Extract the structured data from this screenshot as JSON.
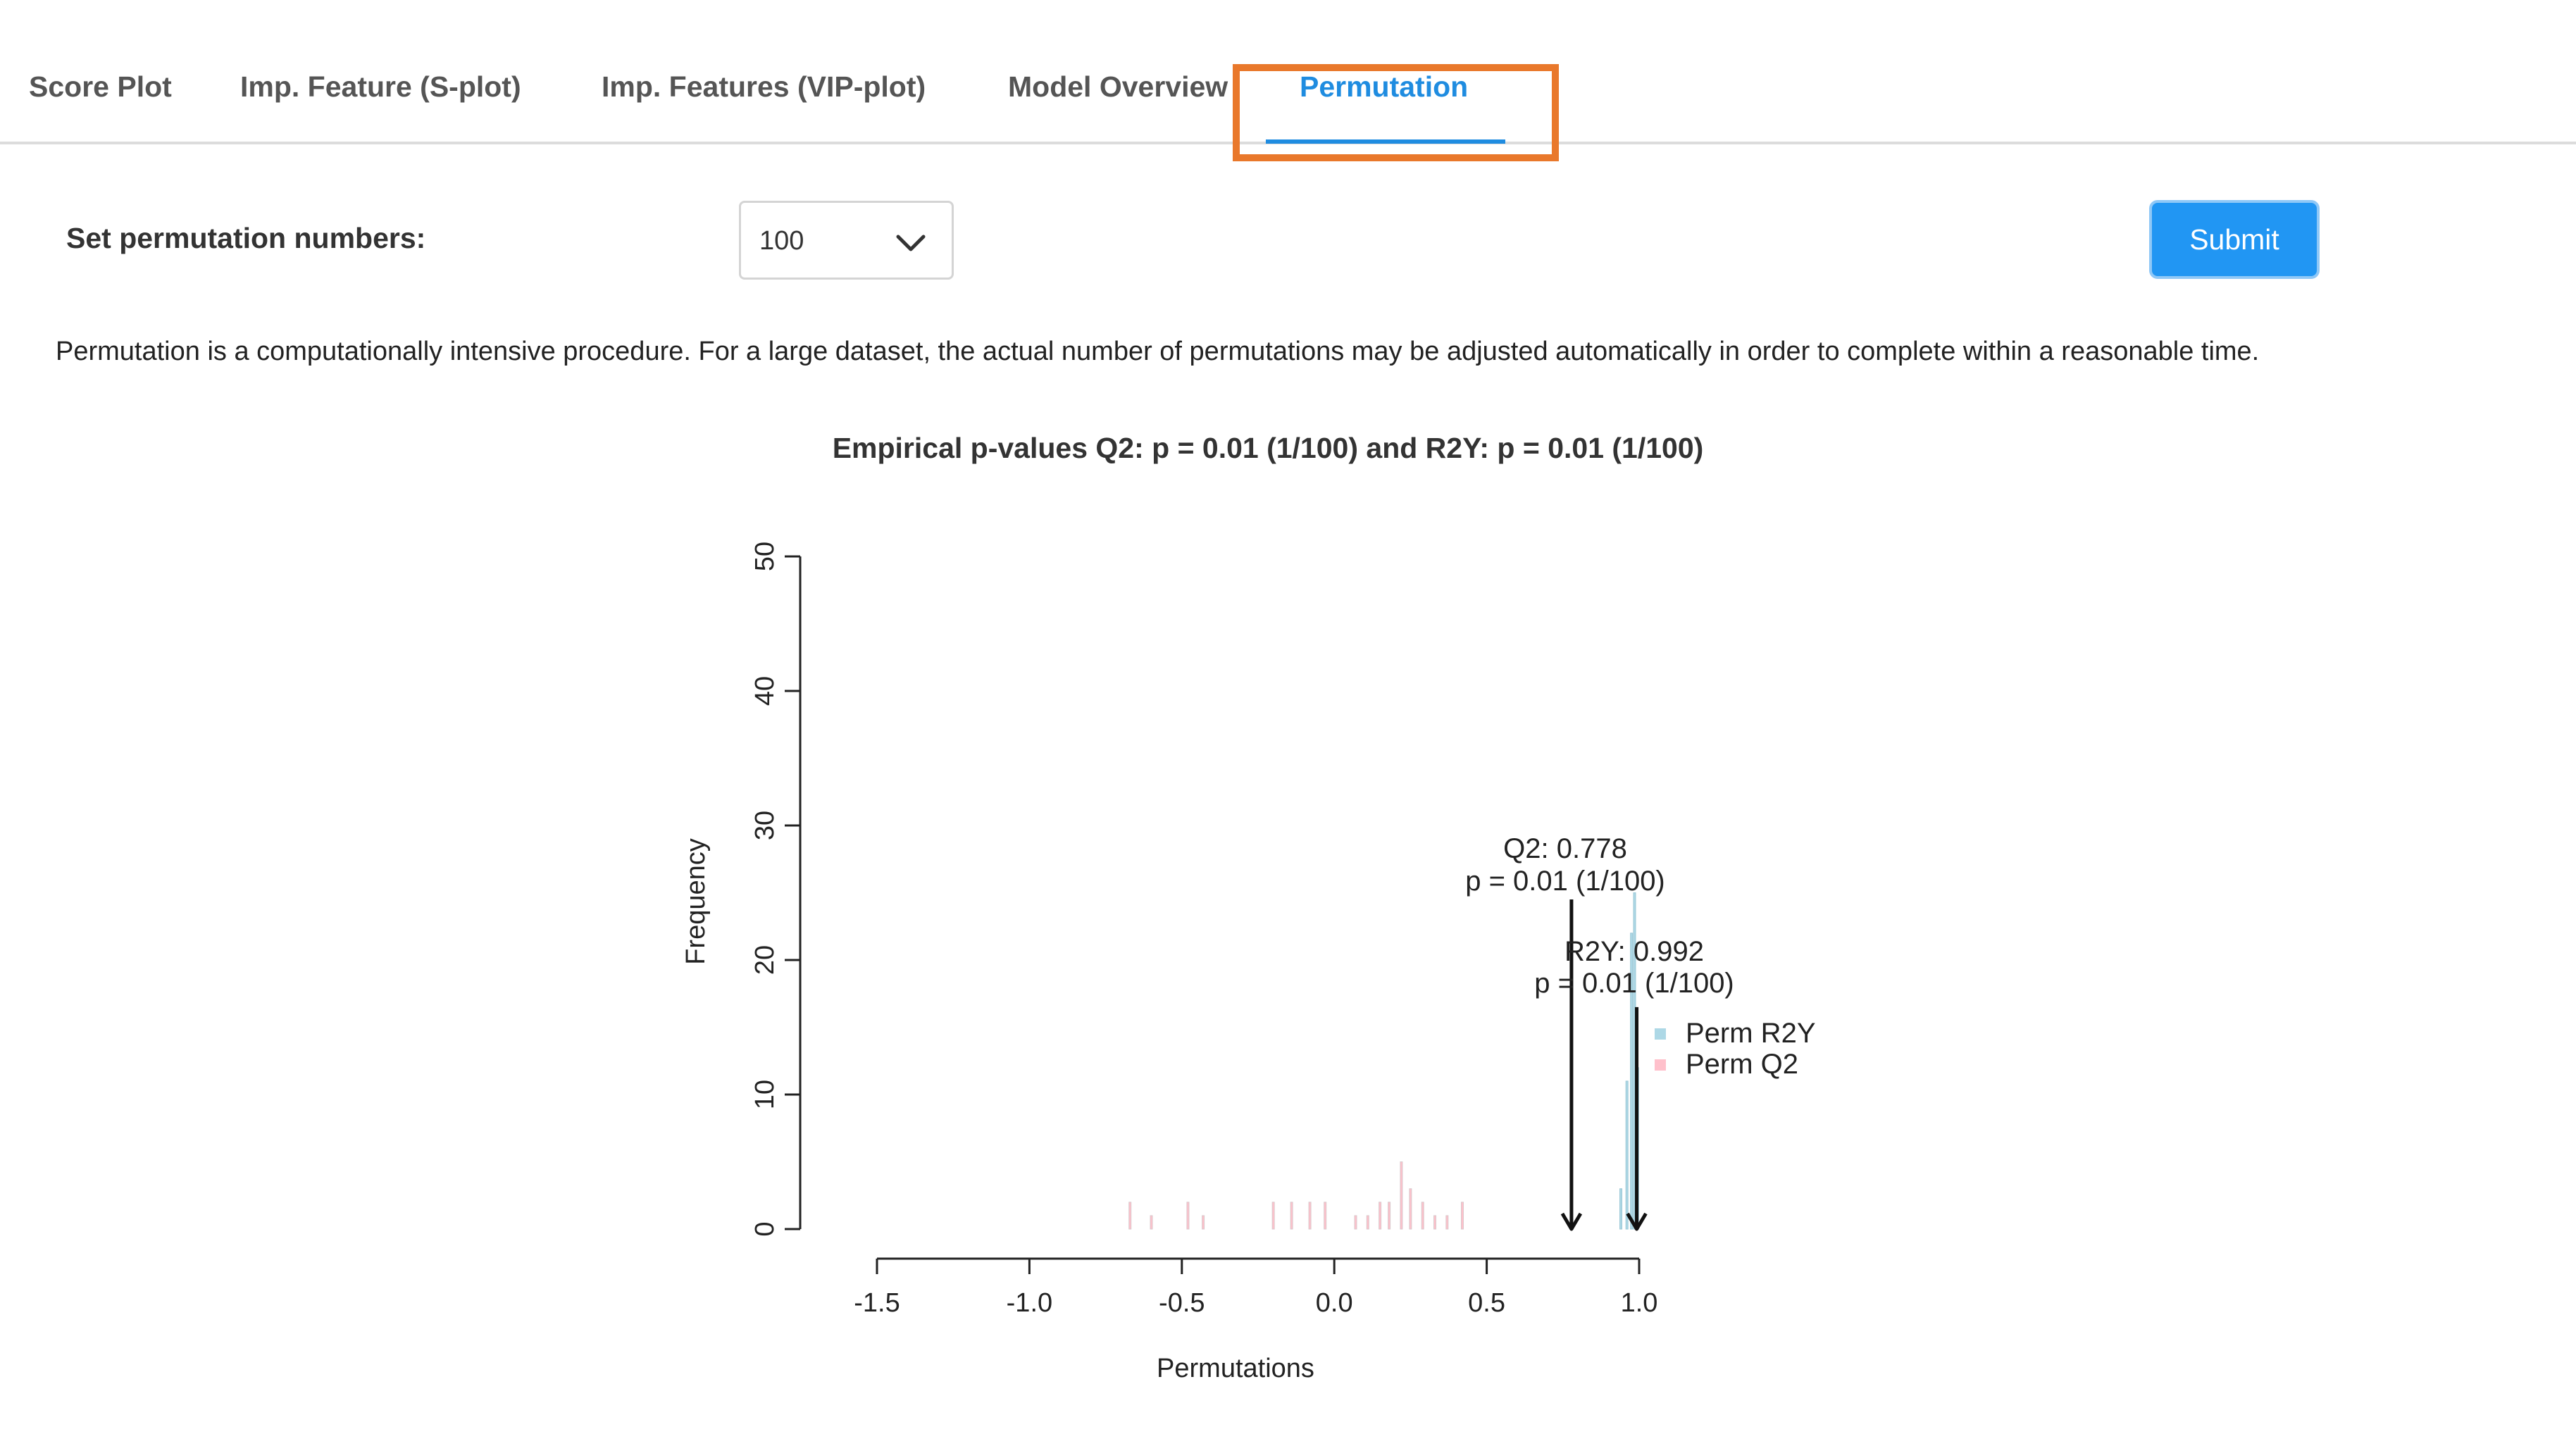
{
  "tabs": [
    {
      "label": "Score Plot",
      "active": false
    },
    {
      "label": "Imp. Feature (S-plot)",
      "active": false
    },
    {
      "label": "Imp. Features (VIP-plot)",
      "active": false
    },
    {
      "label": "Model Overview",
      "active": false
    },
    {
      "label": "Permutation",
      "active": true
    }
  ],
  "controls": {
    "permutation_label": "Set permutation numbers:",
    "permutation_select_value": "100",
    "submit_label": "Submit"
  },
  "note": "Permutation is a computationally intensive procedure. For a large dataset, the actual number of permutations may be adjusted automatically in order to complete within a reasonable time.",
  "colors": {
    "accent": "#1f8ce0",
    "submit_bg": "#2196f3",
    "highlight": "#e9782b",
    "perm_r2y": "#add8e6",
    "perm_q2": "#ffc0cb"
  },
  "chart_data": {
    "type": "histogram",
    "title": "Empirical p-values Q2: p = 0.01 (1/100) and R2Y: p = 0.01 (1/100)",
    "xlabel": "Permutations",
    "ylabel": "Frequency",
    "xlim": [
      -1.5,
      1.0
    ],
    "ylim": [
      0,
      50
    ],
    "x_ticks": [
      "-1.5",
      "-1.0",
      "-0.5",
      "0.0",
      "0.5",
      "1.0"
    ],
    "y_ticks": [
      "0",
      "10",
      "20",
      "30",
      "40",
      "50"
    ],
    "legend": {
      "placement": "right",
      "entries": [
        "Perm R2Y",
        "Perm Q2"
      ]
    },
    "series": [
      {
        "name": "Perm R2Y",
        "color": "#add8e6",
        "bars": [
          {
            "x": 0.94,
            "y": 3
          },
          {
            "x": 0.96,
            "y": 11
          },
          {
            "x": 0.975,
            "y": 22
          },
          {
            "x": 0.985,
            "y": 25
          },
          {
            "x": 0.995,
            "y": 12
          }
        ]
      },
      {
        "name": "Perm Q2",
        "color": "#ffc0cb",
        "bars": [
          {
            "x": -0.67,
            "y": 2
          },
          {
            "x": -0.6,
            "y": 1
          },
          {
            "x": -0.48,
            "y": 2
          },
          {
            "x": -0.43,
            "y": 1
          },
          {
            "x": -0.2,
            "y": 2
          },
          {
            "x": -0.14,
            "y": 2
          },
          {
            "x": -0.08,
            "y": 2
          },
          {
            "x": -0.03,
            "y": 2
          },
          {
            "x": 0.07,
            "y": 1
          },
          {
            "x": 0.11,
            "y": 1
          },
          {
            "x": 0.15,
            "y": 2
          },
          {
            "x": 0.18,
            "y": 2
          },
          {
            "x": 0.22,
            "y": 5
          },
          {
            "x": 0.25,
            "y": 3
          },
          {
            "x": 0.29,
            "y": 2
          },
          {
            "x": 0.33,
            "y": 1
          },
          {
            "x": 0.37,
            "y": 1
          },
          {
            "x": 0.42,
            "y": 2
          }
        ]
      }
    ],
    "annotations": [
      {
        "name": "Q2",
        "line1": "Q2: 0.778",
        "line2": "p = 0.01 (1/100)",
        "x": 0.778,
        "arrow_from_y": 24.5,
        "arrow_to_y": 0
      },
      {
        "name": "R2Y",
        "line1": "R2Y: 0.992",
        "line2": "p = 0.01 (1/100)",
        "x": 0.992,
        "arrow_from_y": 16.5,
        "arrow_to_y": 0
      }
    ]
  }
}
